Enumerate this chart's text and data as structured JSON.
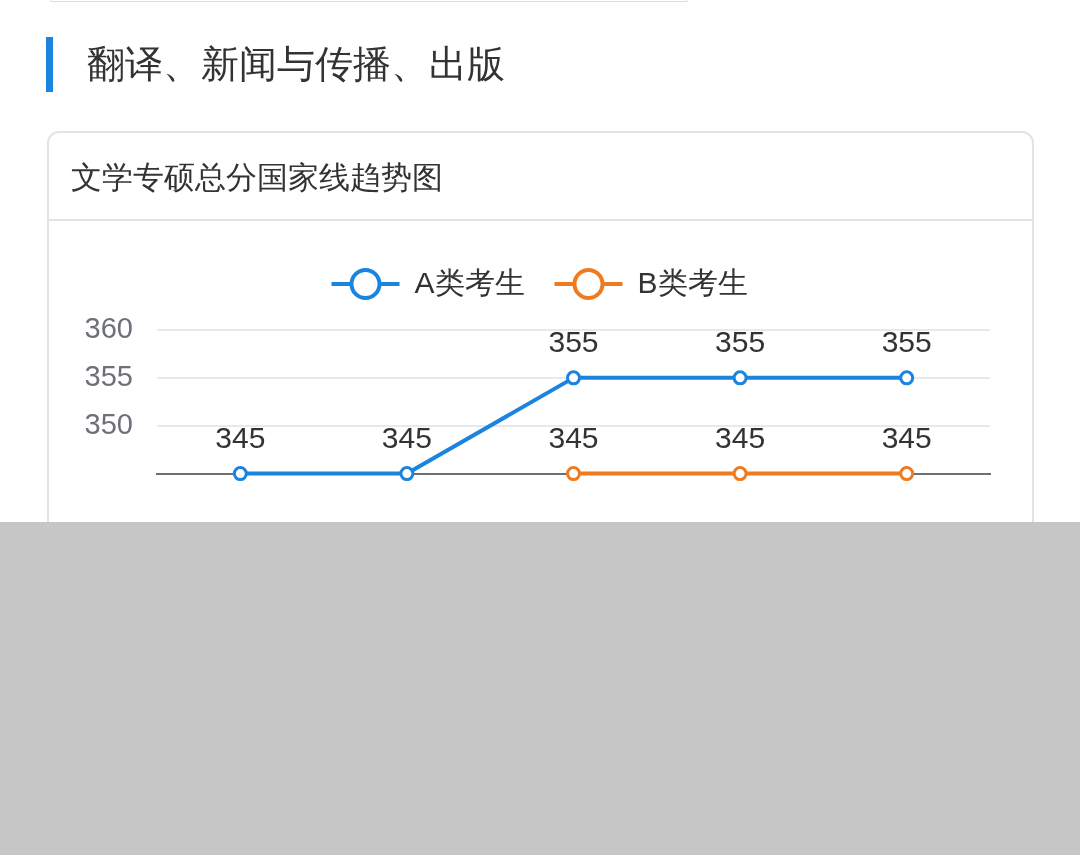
{
  "chart_data": {
    "type": "line",
    "title": "翻译、新闻与传播、出版",
    "subtitle": "文学专硕总分国家线趋势图",
    "categories": [
      null,
      null,
      null,
      null,
      null
    ],
    "series": [
      {
        "name": "A类考生",
        "color": "#1a84df",
        "values": [
          345,
          345,
          355,
          355,
          355
        ]
      },
      {
        "name": "B类考生",
        "color": "#f07b1f",
        "values": [
          null,
          null,
          345,
          345,
          345
        ]
      }
    ],
    "ylim": [
      345,
      360
    ],
    "yticks": [
      350,
      355,
      360
    ],
    "grid": "y",
    "legend": "top",
    "tick_labels": "y",
    "marker": "circle",
    "line_style": "solid",
    "data_labels": true
  }
}
